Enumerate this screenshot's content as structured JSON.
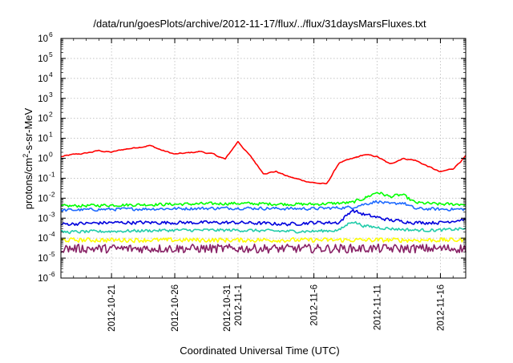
{
  "chart_data": {
    "type": "line",
    "title": "/data/run/goesPlots/archive/2012-11-17/flux/../flux/31daysMarsFluxes.txt",
    "xlabel": "Coordinated Universal Time (UTC)",
    "ylabel": {
      "pre": "protons/cm",
      "sup": "2",
      "post": "-s-sr-MeV"
    },
    "yscale": "log",
    "ylim": [
      1e-06,
      1000000.0
    ],
    "ytick_exponents": [
      -6,
      -5,
      -4,
      -3,
      -2,
      -1,
      0,
      1,
      2,
      3,
      4,
      5,
      6
    ],
    "ytick_base": "10",
    "xlim": [
      "2012-10-17",
      "2012-11-18"
    ],
    "xticks": [
      {
        "date": "2012-10-21",
        "lines": [
          "2012-10-21"
        ]
      },
      {
        "date": "2012-10-26",
        "lines": [
          "2012-10-26"
        ]
      },
      {
        "date": "2012-10-31",
        "lines": [
          "2012-10-31",
          "2012-11-1"
        ]
      },
      {
        "date": "2012-11-06",
        "lines": [
          "2012-11-6"
        ]
      },
      {
        "date": "2012-11-11",
        "lines": [
          "2012-11-11"
        ]
      },
      {
        "date": "2012-11-16",
        "lines": [
          "2012-11-16"
        ]
      }
    ],
    "grid": true,
    "series": [
      {
        "color": "#ff0000",
        "dates": [
          "2012-10-17",
          "2012-10-18",
          "2012-10-19",
          "2012-10-20",
          "2012-10-21",
          "2012-10-22",
          "2012-10-23",
          "2012-10-24",
          "2012-10-25",
          "2012-10-26",
          "2012-10-27",
          "2012-10-28",
          "2012-10-29",
          "2012-10-30",
          "2012-10-31",
          "2012-11-01",
          "2012-11-02",
          "2012-11-03",
          "2012-11-04",
          "2012-11-05",
          "2012-11-06",
          "2012-11-07",
          "2012-11-08",
          "2012-11-09",
          "2012-11-10",
          "2012-11-11",
          "2012-11-12",
          "2012-11-13",
          "2012-11-14",
          "2012-11-15",
          "2012-11-16",
          "2012-11-17",
          "2012-11-18"
        ],
        "values": [
          1.2,
          1.5,
          1.8,
          2.4,
          2.0,
          2.8,
          3.5,
          4.5,
          2.5,
          1.6,
          1.8,
          2.2,
          1.6,
          0.9,
          7.0,
          1.2,
          0.18,
          0.22,
          0.12,
          0.08,
          0.06,
          0.05,
          0.6,
          0.9,
          1.5,
          1.2,
          0.5,
          1.0,
          0.8,
          0.4,
          0.2,
          0.3,
          1.3
        ]
      },
      {
        "color": "#00ff00",
        "dates": [
          "2012-10-17",
          "2012-10-21",
          "2012-10-26",
          "2012-10-31",
          "2012-11-04",
          "2012-11-06",
          "2012-11-09",
          "2012-11-10",
          "2012-11-11",
          "2012-11-12",
          "2012-11-13",
          "2012-11-14",
          "2012-11-16",
          "2012-11-18"
        ],
        "values": [
          0.004,
          0.0045,
          0.005,
          0.0055,
          0.005,
          0.005,
          0.006,
          0.01,
          0.02,
          0.012,
          0.015,
          0.006,
          0.005,
          0.005
        ]
      },
      {
        "color": "#1e6aff",
        "dates": [
          "2012-10-17",
          "2012-10-21",
          "2012-10-26",
          "2012-10-31",
          "2012-11-04",
          "2012-11-06",
          "2012-11-09",
          "2012-11-10",
          "2012-11-11",
          "2012-11-12",
          "2012-11-13",
          "2012-11-14",
          "2012-11-16",
          "2012-11-18"
        ],
        "values": [
          0.0025,
          0.0028,
          0.003,
          0.0032,
          0.003,
          0.003,
          0.0035,
          0.005,
          0.007,
          0.005,
          0.006,
          0.003,
          0.0028,
          0.0028
        ]
      },
      {
        "color": "#0000dd",
        "dates": [
          "2012-10-17",
          "2012-10-21",
          "2012-10-26",
          "2012-10-31",
          "2012-11-04",
          "2012-11-06",
          "2012-11-08",
          "2012-11-09",
          "2012-11-10",
          "2012-11-12",
          "2012-11-14",
          "2012-11-16",
          "2012-11-18"
        ],
        "values": [
          0.0005,
          0.0006,
          0.0006,
          0.0006,
          0.0005,
          0.0006,
          0.0006,
          0.0025,
          0.0015,
          0.0008,
          0.0006,
          0.0006,
          0.0009
        ]
      },
      {
        "color": "#22ccaa",
        "dates": [
          "2012-10-17",
          "2012-10-21",
          "2012-10-26",
          "2012-10-31",
          "2012-11-04",
          "2012-11-06",
          "2012-11-08",
          "2012-11-09",
          "2012-11-10",
          "2012-11-12",
          "2012-11-14",
          "2012-11-16",
          "2012-11-18"
        ],
        "values": [
          0.0002,
          0.00022,
          0.00025,
          0.00025,
          0.00022,
          0.00022,
          0.00025,
          0.0007,
          0.0004,
          0.0003,
          0.00025,
          0.00025,
          0.0003
        ]
      },
      {
        "color": "#ffff00",
        "dates": [
          "2012-10-17",
          "2012-10-26",
          "2012-11-06",
          "2012-11-18"
        ],
        "values": [
          8e-05,
          8e-05,
          8e-05,
          8e-05
        ]
      },
      {
        "color": "#882266",
        "dates": [
          "2012-10-17",
          "2012-10-26",
          "2012-11-06",
          "2012-11-18"
        ],
        "values": [
          3e-05,
          3e-05,
          3e-05,
          3e-05
        ]
      }
    ]
  }
}
